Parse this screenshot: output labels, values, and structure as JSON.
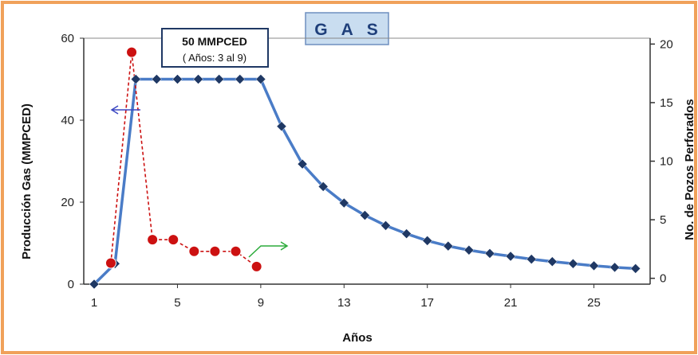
{
  "chart_data": {
    "type": "line",
    "title": "G A S",
    "xlabel": "Años",
    "ylabel_left": "Producción Gas (MMPCED)",
    "ylabel_right": "No. de Pozos Perforados",
    "xlim": [
      0.5,
      27.7
    ],
    "xticks": [
      1,
      5,
      9,
      13,
      17,
      21,
      25
    ],
    "ylim_left": [
      0,
      60
    ],
    "yticks_left": [
      0,
      20,
      40,
      60
    ],
    "ylim_right": [
      -0.5,
      20.5
    ],
    "yticks_right": [
      0,
      5,
      10,
      15,
      20
    ],
    "annotation": {
      "line1": "50 MMPCED",
      "line2": "( Años: 3 al 9)"
    },
    "series": [
      {
        "axis": "left",
        "color": "#4a7cc7",
        "marker_color": "#1f3864",
        "style": "solid",
        "x": [
          1,
          2,
          3,
          4,
          5,
          6,
          7,
          8,
          9,
          10,
          11,
          12,
          13,
          14,
          15,
          16,
          17,
          18,
          19,
          20,
          21,
          22,
          23,
          24,
          25,
          26,
          27
        ],
        "values": [
          0,
          5,
          50,
          50,
          50,
          50,
          50,
          50,
          50,
          38.5,
          29.3,
          23.8,
          19.8,
          16.8,
          14.3,
          12.3,
          10.6,
          9.3,
          8.3,
          7.5,
          6.8,
          6.1,
          5.5,
          5.0,
          4.5,
          4.1,
          3.8
        ]
      },
      {
        "axis": "right",
        "color": "#cc1111",
        "marker_color": "#cc1111",
        "style": "dashed",
        "x": [
          1.8,
          2.8,
          3.8,
          4.8,
          5.8,
          6.8,
          7.8,
          8.8
        ],
        "values": [
          1.3,
          19.3,
          3.3,
          3.3,
          2.3,
          2.3,
          2.3,
          1.0
        ]
      }
    ],
    "arrows": {
      "left_color": "#3b47c2",
      "right_color": "#2bab3a"
    },
    "colors": {
      "frame_border": "#f0a15a",
      "legend_fill": "#c9ddf0",
      "legend_border": "#6e8fbf"
    }
  }
}
